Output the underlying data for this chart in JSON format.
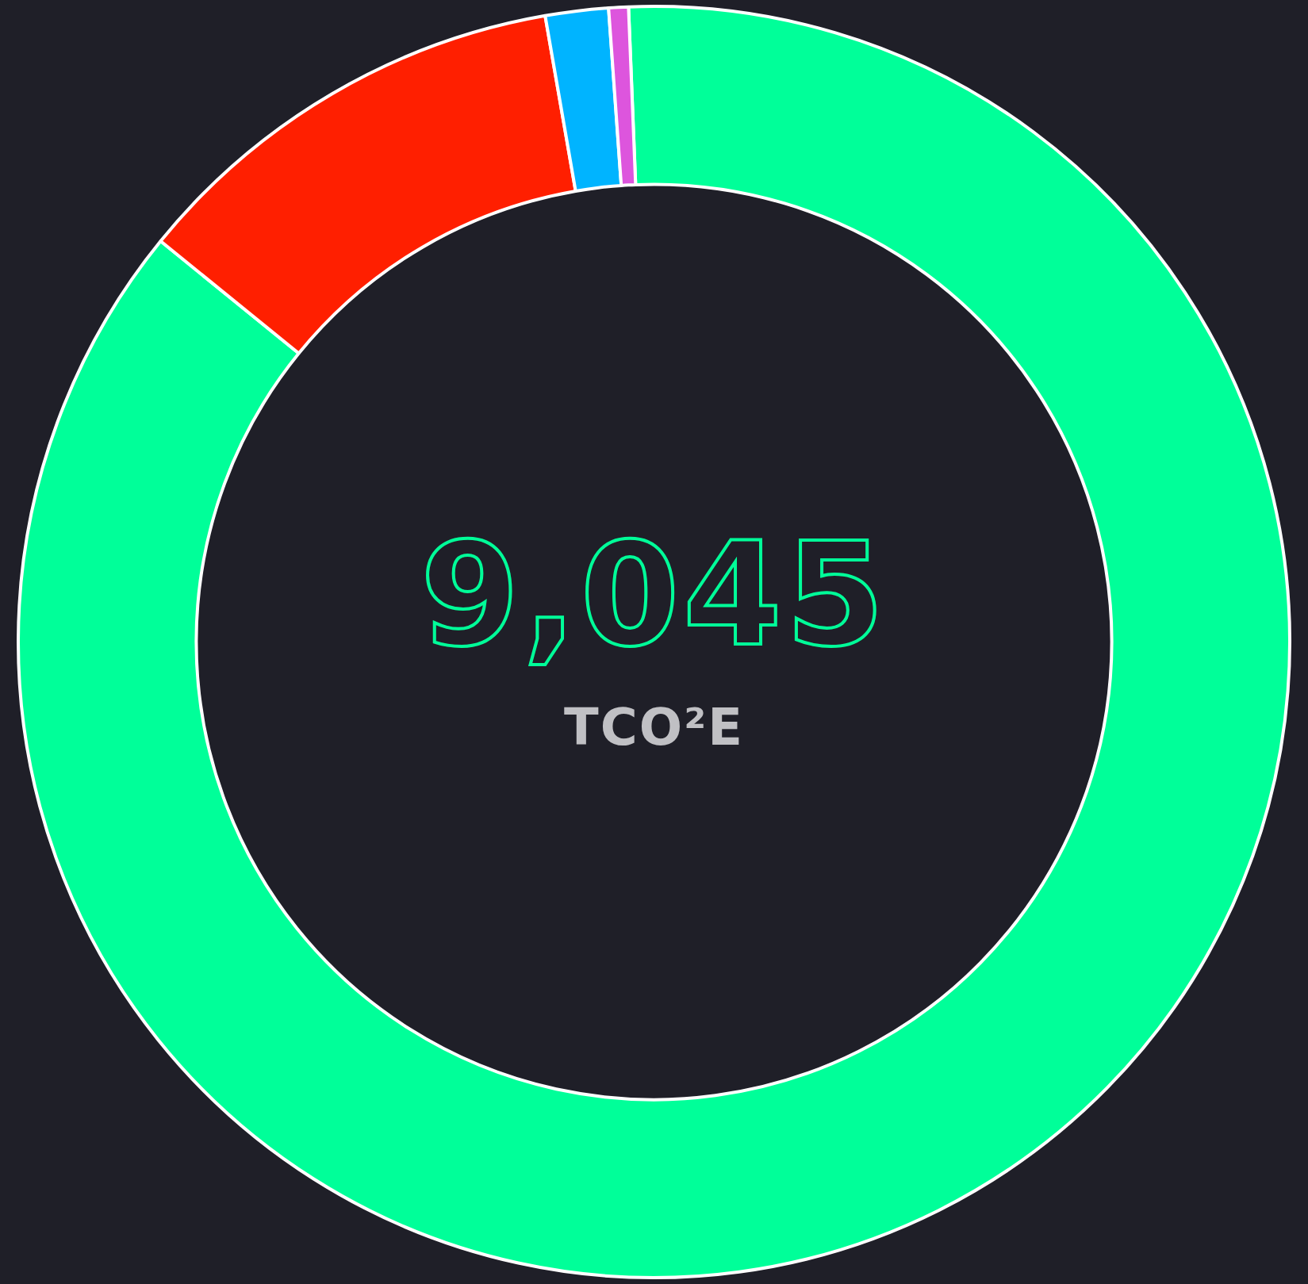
{
  "chart_data": {
    "type": "donut",
    "title": "9,045",
    "subtitle": "TCO²E",
    "categories": [
      null,
      null,
      null,
      null
    ],
    "values": [
      86.5,
      11.4,
      1.6,
      0.5
    ],
    "colors": [
      "#00ff99",
      "#ff1f00",
      "#00b4ff",
      "#dd55dd"
    ],
    "legend": false
  }
}
